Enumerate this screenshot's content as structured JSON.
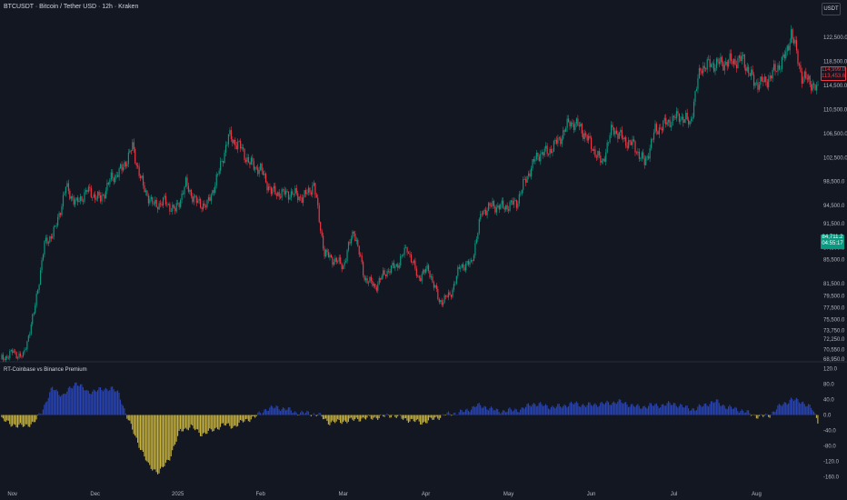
{
  "header": {
    "symbol_line": "BTCUSDT · Bitcoin / Tether USD · 12h · Kraken",
    "currency_button": "USDT"
  },
  "indicator": {
    "title": "RT-Coinbase vs Binance Premium"
  },
  "price_tags": {
    "red": {
      "line1": "114,999.0",
      "line2": "113,453.6"
    },
    "green": {
      "line1": "84,711.2",
      "line2": "04:55:17"
    }
  },
  "colors": {
    "background": "#131722",
    "up": "#089981",
    "down": "#f23645",
    "premium_positive": "#2945b8",
    "premium_negative": "#c9b43e",
    "grid_separator": "#2a2e39"
  },
  "chart_data": [
    {
      "type": "candlestick",
      "title": "",
      "y_ticks": [
        "122,500.0",
        "118,500.0",
        "114,500.0",
        "110,500.0",
        "106,500.0",
        "102,500.0",
        "98,500.0",
        "94,500.0",
        "91,500.0",
        "87,500.0",
        "85,500.0",
        "81,500.0",
        "79,500.0",
        "77,500.0",
        "75,500.0",
        "73,750.0",
        "72,250.0",
        "70,550.0",
        "68,950.0"
      ],
      "x_ticks": [
        "Nov",
        "Dec",
        "2025",
        "Feb",
        "Mar",
        "Apr",
        "May",
        "Jun",
        "Jul",
        "Aug"
      ],
      "ylim": [
        68950,
        126000
      ],
      "approx_close_path": [
        [
          "Oct 28",
          68900
        ],
        [
          "Nov 01",
          70100
        ],
        [
          "Nov 05",
          69300
        ],
        [
          "Nov 09",
          76500
        ],
        [
          "Nov 13",
          88000
        ],
        [
          "Nov 17",
          90500
        ],
        [
          "Nov 21",
          97500
        ],
        [
          "Nov 25",
          94800
        ],
        [
          "Nov 29",
          97000
        ],
        [
          "Dec 03",
          95500
        ],
        [
          "Dec 07",
          99000
        ],
        [
          "Dec 11",
          100500
        ],
        [
          "Dec 15",
          104200
        ],
        [
          "Dec 19",
          97500
        ],
        [
          "Dec 23",
          94500
        ],
        [
          "Dec 27",
          95200
        ],
        [
          "Dec 31",
          93600
        ],
        [
          "Jan 04",
          98000
        ],
        [
          "Jan 08",
          95000
        ],
        [
          "Jan 12",
          94500
        ],
        [
          "Jan 16",
          99500
        ],
        [
          "Jan 20",
          106000
        ],
        [
          "Jan 24",
          104500
        ],
        [
          "Jan 28",
          101500
        ],
        [
          "Feb 01",
          100500
        ],
        [
          "Feb 05",
          96800
        ],
        [
          "Feb 09",
          96500
        ],
        [
          "Feb 13",
          96500
        ],
        [
          "Feb 17",
          95800
        ],
        [
          "Feb 21",
          98000
        ],
        [
          "Feb 25",
          86500
        ],
        [
          "Mar 01",
          84500
        ],
        [
          "Mar 05",
          90500
        ],
        [
          "Mar 09",
          82500
        ],
        [
          "Mar 13",
          81000
        ],
        [
          "Mar 17",
          83500
        ],
        [
          "Mar 21",
          84500
        ],
        [
          "Mar 25",
          87500
        ],
        [
          "Mar 29",
          82500
        ],
        [
          "Apr 02",
          84000
        ],
        [
          "Apr 06",
          78500
        ],
        [
          "Apr 10",
          79500
        ],
        [
          "Apr 14",
          84500
        ],
        [
          "Apr 18",
          84800
        ],
        [
          "Apr 22",
          93500
        ],
        [
          "Apr 26",
          94500
        ],
        [
          "Apr 30",
          94200
        ],
        [
          "May 04",
          95000
        ],
        [
          "May 08",
          99500
        ],
        [
          "May 12",
          103000
        ],
        [
          "May 16",
          103500
        ],
        [
          "May 20",
          105500
        ],
        [
          "May 24",
          108500
        ],
        [
          "May 28",
          107500
        ],
        [
          "Jun 01",
          104500
        ],
        [
          "Jun 05",
          101500
        ],
        [
          "Jun 09",
          107500
        ],
        [
          "Jun 13",
          105500
        ],
        [
          "Jun 17",
          104500
        ],
        [
          "Jun 21",
          101500
        ],
        [
          "Jun 25",
          107000
        ],
        [
          "Jun 29",
          108200
        ],
        [
          "Jul 03",
          109500
        ],
        [
          "Jul 07",
          108200
        ],
        [
          "Jul 11",
          117500
        ],
        [
          "Jul 15",
          118000
        ],
        [
          "Jul 19",
          118200
        ],
        [
          "Jul 23",
          118500
        ],
        [
          "Jul 27",
          118800
        ],
        [
          "Jul 31",
          115000
        ],
        [
          "Aug 04",
          115000
        ],
        [
          "Aug 08",
          117000
        ],
        [
          "Aug 12",
          119500
        ],
        [
          "Aug 14",
          123500
        ],
        [
          "Aug 18",
          116000
        ],
        [
          "Aug 22",
          114800
        ],
        [
          "Aug 24",
          113453
        ]
      ]
    },
    {
      "type": "bar",
      "title": "RT-Coinbase vs Binance Premium",
      "y_ticks": [
        "120.0",
        "80.0",
        "40.0",
        "0.0",
        "-40.0",
        "-80.0",
        "-120.0",
        "-160.0"
      ],
      "ylim": [
        -175,
        128
      ],
      "approx_profile": [
        [
          "Oct 28",
          -12
        ],
        [
          "Nov 03",
          -30
        ],
        [
          "Nov 09",
          -22
        ],
        [
          "Nov 12",
          10
        ],
        [
          "Nov 16",
          70
        ],
        [
          "Nov 20",
          50
        ],
        [
          "Nov 25",
          85
        ],
        [
          "Nov 29",
          60
        ],
        [
          "Dec 03",
          65
        ],
        [
          "Dec 07",
          70
        ],
        [
          "Dec 10",
          55
        ],
        [
          "Dec 13",
          -5
        ],
        [
          "Dec 17",
          -70
        ],
        [
          "Dec 21",
          -130
        ],
        [
          "Dec 25",
          -150
        ],
        [
          "Dec 29",
          -110
        ],
        [
          "Jan 02",
          -40
        ],
        [
          "Jan 06",
          -30
        ],
        [
          "Jan 10",
          -50
        ],
        [
          "Jan 14",
          -40
        ],
        [
          "Jan 18",
          -25
        ],
        [
          "Jan 22",
          -30
        ],
        [
          "Jan 26",
          -15
        ],
        [
          "Jan 30",
          -5
        ],
        [
          "Feb 03",
          15
        ],
        [
          "Feb 07",
          20
        ],
        [
          "Feb 11",
          15
        ],
        [
          "Feb 15",
          5
        ],
        [
          "Feb 19",
          5
        ],
        [
          "Feb 23",
          0
        ],
        [
          "Feb 27",
          -20
        ],
        [
          "Mar 03",
          -15
        ],
        [
          "Mar 07",
          -10
        ],
        [
          "Mar 11",
          -8
        ],
        [
          "Mar 15",
          -5
        ],
        [
          "Mar 19",
          0
        ],
        [
          "Mar 23",
          -8
        ],
        [
          "Mar 27",
          -15
        ],
        [
          "Mar 31",
          -20
        ],
        [
          "Apr 04",
          -10
        ],
        [
          "Apr 08",
          0
        ],
        [
          "Apr 12",
          5
        ],
        [
          "Apr 16",
          10
        ],
        [
          "Apr 20",
          25
        ],
        [
          "Apr 24",
          20
        ],
        [
          "Apr 28",
          10
        ],
        [
          "May 02",
          12
        ],
        [
          "May 06",
          15
        ],
        [
          "May 10",
          30
        ],
        [
          "May 14",
          25
        ],
        [
          "May 18",
          20
        ],
        [
          "May 22",
          25
        ],
        [
          "May 26",
          30
        ],
        [
          "May 30",
          25
        ],
        [
          "Jun 03",
          28
        ],
        [
          "Jun 07",
          30
        ],
        [
          "Jun 11",
          35
        ],
        [
          "Jun 15",
          28
        ],
        [
          "Jun 19",
          20
        ],
        [
          "Jun 23",
          25
        ],
        [
          "Jun 27",
          25
        ],
        [
          "Jul 01",
          30
        ],
        [
          "Jul 05",
          20
        ],
        [
          "Jul 09",
          15
        ],
        [
          "Jul 13",
          28
        ],
        [
          "Jul 17",
          35
        ],
        [
          "Jul 21",
          20
        ],
        [
          "Jul 25",
          15
        ],
        [
          "Jul 29",
          5
        ],
        [
          "Aug 02",
          -5
        ],
        [
          "Aug 06",
          0
        ],
        [
          "Aug 10",
          25
        ],
        [
          "Aug 14",
          40
        ],
        [
          "Aug 18",
          35
        ],
        [
          "Aug 22",
          15
        ],
        [
          "Aug 24",
          -15
        ]
      ]
    }
  ]
}
